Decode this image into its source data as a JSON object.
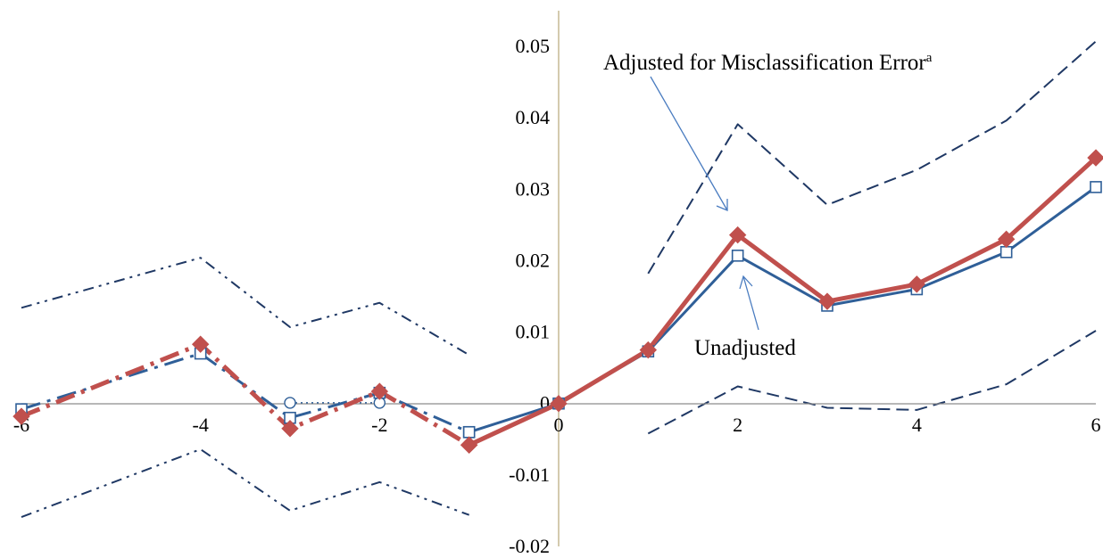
{
  "chart_data": {
    "type": "line",
    "xlim": [
      -6,
      6
    ],
    "ylim": [
      -0.02,
      0.05
    ],
    "x_ticks": [
      "-6",
      "-4",
      "-2",
      "0",
      "2",
      "4",
      "6"
    ],
    "y_ticks": [
      "-0.02",
      "-0.01",
      "0",
      "0.01",
      "0.02",
      "0.03",
      "0.04",
      "0.05"
    ],
    "grid": false,
    "annotations": {
      "adjusted": "Adjusted for Misclassification Error",
      "adjusted_sup": "a",
      "unadjusted": "Unadjusted"
    },
    "series": [
      {
        "role": "unadjusted_post",
        "color": "#2F5F98",
        "marker": "open-square",
        "line": "solid",
        "x": [
          -1,
          0,
          1,
          2,
          3,
          4,
          5,
          6
        ],
        "y": [
          -0.004,
          0,
          0.0073,
          0.0207,
          0.0137,
          0.016,
          0.0212,
          0.0303
        ]
      },
      {
        "role": "unadjusted_pre",
        "color": "#2F5F98",
        "marker": "open-square",
        "line": "dash-dot",
        "x": [
          -6,
          -4,
          -3,
          -2,
          -1
        ],
        "y": [
          -0.0008,
          0.007,
          -0.002,
          0.0015,
          -0.004
        ]
      },
      {
        "role": "unadjusted_pre_alt",
        "color": "#2F5F98",
        "marker": "open-circle",
        "line": "dotted",
        "x": [
          -3,
          -2
        ],
        "y": [
          0.0001,
          0.0001
        ]
      },
      {
        "role": "adjusted_post",
        "color": "#C0504D",
        "marker": "filled-diamond",
        "line": "solid",
        "x": [
          -1,
          0,
          1,
          2,
          3,
          4,
          5,
          6
        ],
        "y": [
          -0.0058,
          0,
          0.0075,
          0.0236,
          0.0143,
          0.0167,
          0.023,
          0.0344
        ]
      },
      {
        "role": "adjusted_pre",
        "color": "#C0504D",
        "marker": "filled-diamond",
        "line": "dash-dot",
        "x": [
          -6,
          -4,
          -3,
          -2,
          -1
        ],
        "y": [
          -0.0018,
          0.0083,
          -0.0035,
          0.0017,
          -0.0058
        ]
      },
      {
        "role": "ci_upper_post",
        "color": "#1F3864",
        "line": "dashed",
        "x": [
          1,
          2,
          3,
          4,
          5,
          6
        ],
        "y": [
          0.0182,
          0.0391,
          0.0278,
          0.0327,
          0.0396,
          0.0507
        ]
      },
      {
        "role": "ci_lower_post",
        "color": "#1F3864",
        "line": "dashed",
        "x": [
          1,
          2,
          3,
          4,
          5,
          6
        ],
        "y": [
          -0.0042,
          0.0024,
          -0.0006,
          -0.0009,
          0.0027,
          0.0102
        ]
      },
      {
        "role": "ci_upper_pre",
        "color": "#1F3864",
        "line": "dash-dot-dot",
        "x": [
          -6,
          -4,
          -3,
          -2,
          -1
        ],
        "y": [
          0.0134,
          0.0204,
          0.0107,
          0.0141,
          0.0068
        ]
      },
      {
        "role": "ci_lower_pre",
        "color": "#1F3864",
        "line": "dash-dot-dot",
        "x": [
          -6,
          -4,
          -3,
          -2,
          -1
        ],
        "y": [
          -0.0159,
          -0.0064,
          -0.015,
          -0.011,
          -0.0156
        ]
      }
    ]
  }
}
